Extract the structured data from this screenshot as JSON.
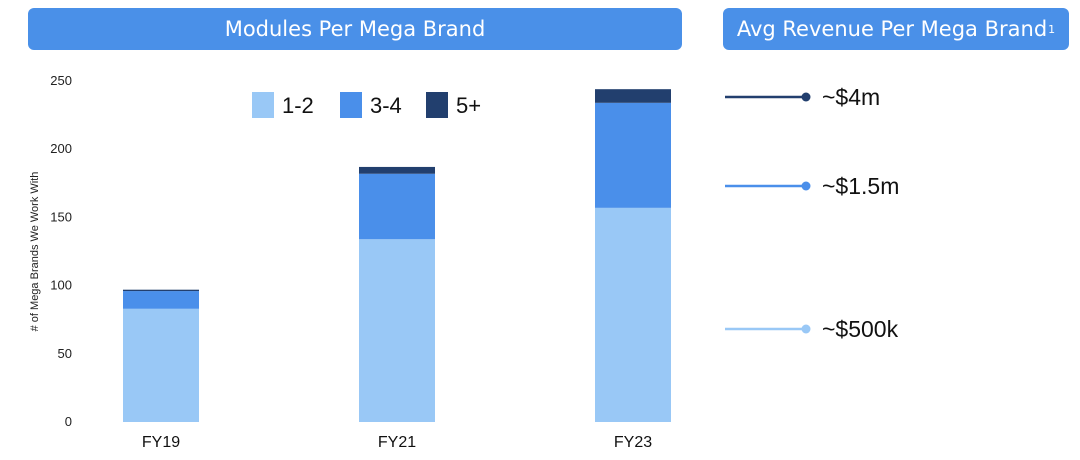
{
  "banners": {
    "modules_title": "Modules Per Mega Brand",
    "revenue_title": "Avg Revenue Per Mega Brand",
    "revenue_footnote": "1"
  },
  "colors": {
    "banner": "#4a90e8",
    "series": [
      "#99c8f6",
      "#4a8fea",
      "#223f6e"
    ]
  },
  "chart_data": {
    "type": "bar",
    "stacked": true,
    "categories": [
      "FY19",
      "FY21",
      "FY23"
    ],
    "series": [
      {
        "name": "1-2",
        "values": [
          83,
          134,
          157
        ]
      },
      {
        "name": "3-4",
        "values": [
          13,
          48,
          77
        ]
      },
      {
        "name": "5+",
        "values": [
          1,
          5,
          10
        ]
      }
    ],
    "ylabel": "# of Mega Brands We Work With",
    "ylim": [
      0,
      250
    ],
    "yticks": [
      0,
      50,
      100,
      150,
      200,
      250
    ],
    "legend": "top"
  },
  "revenue_markers": [
    {
      "label": "~$4m",
      "series": "5+"
    },
    {
      "label": "~$1.5m",
      "series": "3-4"
    },
    {
      "label": "~$500k",
      "series": "1-2"
    }
  ]
}
